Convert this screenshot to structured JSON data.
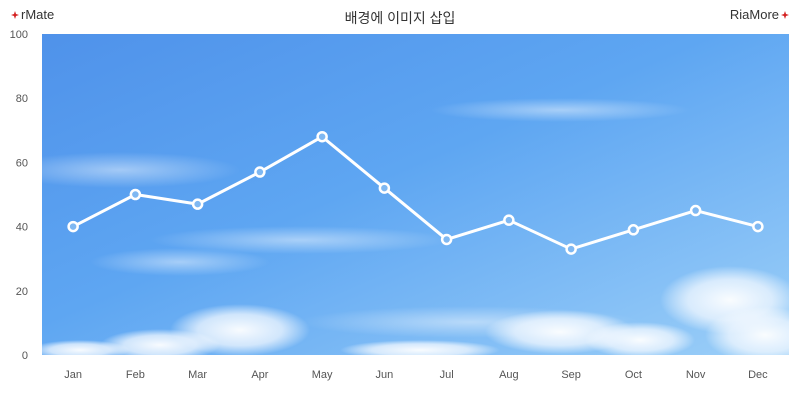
{
  "header": {
    "brand_left": "rMate",
    "brand_right": "RiaMore",
    "title": "배경에 이미지 삽입"
  },
  "colors": {
    "sky_top": "#5ea2f0",
    "sky_bottom": "#9ccbf7",
    "line": "#ffffff",
    "brand_mark": "#d42020",
    "tick_text": "#555555"
  },
  "chart_data": {
    "type": "line",
    "title": "배경에 이미지 삽입",
    "categories": [
      "Jan",
      "Feb",
      "Mar",
      "Apr",
      "May",
      "Jun",
      "Jul",
      "Aug",
      "Sep",
      "Oct",
      "Nov",
      "Dec"
    ],
    "series": [
      {
        "values": [
          40,
          50,
          47,
          57,
          68,
          52,
          36,
          42,
          33,
          39,
          45,
          40
        ]
      }
    ],
    "ylim": [
      0,
      100
    ],
    "yticks": [
      0,
      20,
      40,
      60,
      80,
      100
    ],
    "xlabel": "",
    "ylabel": "",
    "grid": false,
    "legend": "none",
    "background": "sky image with clouds"
  }
}
